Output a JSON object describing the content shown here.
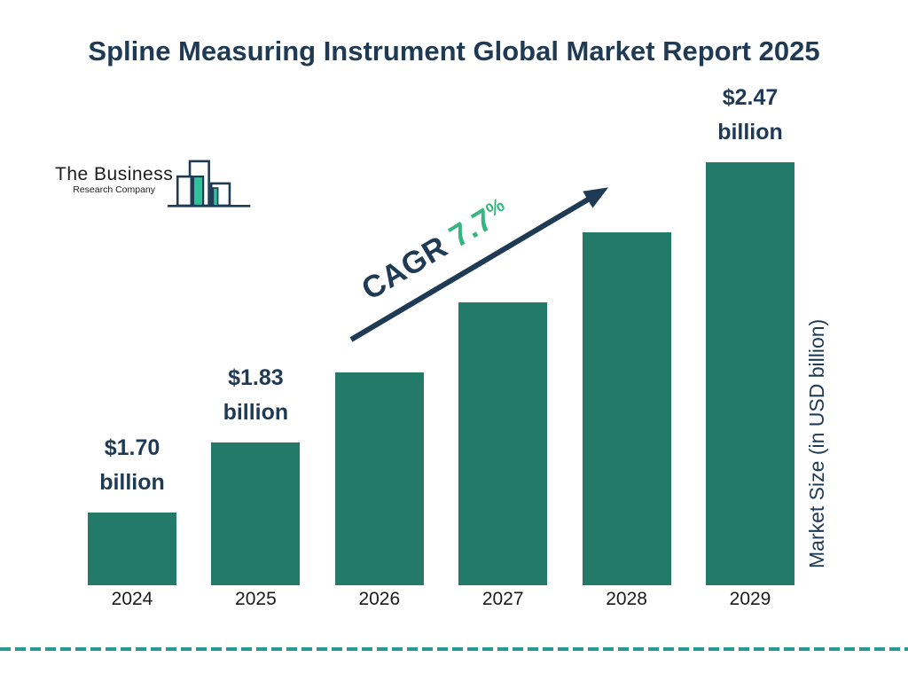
{
  "title": "Spline Measuring Instrument Global Market Report 2025",
  "logo": {
    "name": "The Business",
    "subname": "Research Company"
  },
  "cagr": {
    "prefix": "CAGR ",
    "value": "7.7",
    "suffix": "%"
  },
  "colors": {
    "bar": "#247a68",
    "navy": "#1e3a54",
    "green": "#35b681",
    "dash_line": "#2a9894",
    "logo_teal": "#2dc39a"
  },
  "chart_data": {
    "type": "bar",
    "title": "Spline Measuring Instrument Global Market Report 2025",
    "categories": [
      "2024",
      "2025",
      "2026",
      "2027",
      "2028",
      "2029"
    ],
    "values": [
      1.7,
      1.83,
      1.97,
      2.12,
      2.29,
      2.47
    ],
    "bar_labels": [
      {
        "line1": "$1.70",
        "line2": "billion"
      },
      {
        "line1": "$1.83",
        "line2": "billion"
      },
      null,
      null,
      null,
      {
        "line1": "$2.47",
        "line2": "billion"
      }
    ],
    "cagr_text": "CAGR 7.7%",
    "xlabel": "",
    "ylabel": "Market Size (in USD billion)",
    "legend": false,
    "grid": false,
    "bar_color": "#247a68"
  }
}
